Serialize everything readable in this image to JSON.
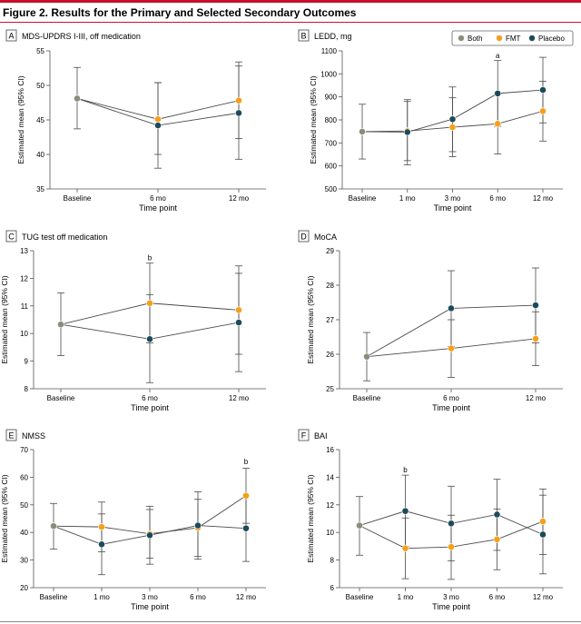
{
  "figure_title": "Figure 2. Results for the Primary and Selected Secondary Outcomes",
  "legend": [
    {
      "name": "Both",
      "color": "#8c8c7a"
    },
    {
      "name": "FMT",
      "color": "#f5a01a"
    },
    {
      "name": "Placebo",
      "color": "#1d4a5a"
    }
  ],
  "chart_data": [
    {
      "type": "line",
      "panel": "A",
      "title": "MDS-UPDRS I-III, off medication",
      "xlabel": "Time point",
      "ylabel": "Estimated mean (95% CI)",
      "categories": [
        "Baseline",
        "6 mo",
        "12 mo"
      ],
      "ylim": [
        35,
        55
      ],
      "yticks": [
        35,
        40,
        45,
        50,
        55
      ],
      "legend": false,
      "series": [
        {
          "name": "Both",
          "points": [
            {
              "x": "Baseline",
              "y": 48.1,
              "lo": 43.7,
              "hi": 52.6
            }
          ]
        },
        {
          "name": "FMT",
          "points": [
            {
              "x": "Baseline",
              "y": 48.1
            },
            {
              "x": "6 mo",
              "y": 45.1,
              "lo": 40.0,
              "hi": 50.4
            },
            {
              "x": "12 mo",
              "y": 47.8,
              "lo": 42.3,
              "hi": 53.4
            }
          ]
        },
        {
          "name": "Placebo",
          "points": [
            {
              "x": "Baseline",
              "y": 48.1
            },
            {
              "x": "6 mo",
              "y": 44.2,
              "lo": 38.0,
              "hi": 50.4
            },
            {
              "x": "12 mo",
              "y": 46.0,
              "lo": 39.3,
              "hi": 52.8
            }
          ]
        }
      ],
      "annotations": []
    },
    {
      "type": "line",
      "panel": "B",
      "title": "LEDD, mg",
      "xlabel": "Time point",
      "ylabel": "Estimated mean (95% CI)",
      "categories": [
        "Baseline",
        "1 mo",
        "3 mo",
        "6 mo",
        "12 mo"
      ],
      "ylim": [
        500,
        1100
      ],
      "yticks": [
        500,
        600,
        700,
        800,
        900,
        1000,
        1100
      ],
      "legend": true,
      "series": [
        {
          "name": "Both",
          "points": [
            {
              "x": "Baseline",
              "y": 749,
              "lo": 630,
              "hi": 868
            }
          ]
        },
        {
          "name": "FMT",
          "points": [
            {
              "x": "Baseline",
              "y": 749
            },
            {
              "x": "1 mo",
              "y": 752,
              "lo": 623,
              "hi": 880
            },
            {
              "x": "3 mo",
              "y": 768,
              "lo": 640,
              "hi": 896
            },
            {
              "x": "6 mo",
              "y": 783,
              "lo": 652,
              "hi": 913
            },
            {
              "x": "12 mo",
              "y": 838,
              "lo": 708,
              "hi": 968
            }
          ]
        },
        {
          "name": "Placebo",
          "points": [
            {
              "x": "Baseline",
              "y": 749
            },
            {
              "x": "1 mo",
              "y": 747,
              "lo": 605,
              "hi": 888
            },
            {
              "x": "3 mo",
              "y": 803,
              "lo": 662,
              "hi": 943
            },
            {
              "x": "6 mo",
              "y": 915,
              "lo": 772,
              "hi": 1058
            },
            {
              "x": "12 mo",
              "y": 930,
              "lo": 787,
              "hi": 1072
            }
          ]
        }
      ],
      "annotations": [
        {
          "x": "6 mo",
          "y": 1080,
          "text": "a"
        }
      ]
    },
    {
      "type": "line",
      "panel": "C",
      "title": "TUG test off medication",
      "xlabel": "Time point",
      "ylabel": "Estimated mean (95% CI)",
      "categories": [
        "Baseline",
        "6 mo",
        "12 mo"
      ],
      "ylim": [
        8,
        13
      ],
      "yticks": [
        8,
        9,
        10,
        11,
        12,
        13
      ],
      "legend": false,
      "series": [
        {
          "name": "Both",
          "points": [
            {
              "x": "Baseline",
              "y": 10.33,
              "lo": 9.2,
              "hi": 11.47
            }
          ]
        },
        {
          "name": "FMT",
          "points": [
            {
              "x": "Baseline",
              "y": 10.33
            },
            {
              "x": "6 mo",
              "y": 11.1,
              "lo": 9.66,
              "hi": 12.55
            },
            {
              "x": "12 mo",
              "y": 10.85,
              "lo": 9.25,
              "hi": 12.45
            }
          ]
        },
        {
          "name": "Placebo",
          "points": [
            {
              "x": "Baseline",
              "y": 10.33
            },
            {
              "x": "6 mo",
              "y": 9.8,
              "lo": 8.22,
              "hi": 11.41
            },
            {
              "x": "12 mo",
              "y": 10.4,
              "lo": 8.62,
              "hi": 12.18
            }
          ]
        }
      ],
      "annotations": [
        {
          "x": "6 mo",
          "y": 12.75,
          "text": "b"
        }
      ]
    },
    {
      "type": "line",
      "panel": "D",
      "title": "MoCA",
      "xlabel": "Time point",
      "ylabel": "Estimated mean (95% CI)",
      "categories": [
        "Baseline",
        "6 mo",
        "12 mo"
      ],
      "ylim": [
        25,
        29
      ],
      "yticks": [
        25,
        26,
        27,
        28,
        29
      ],
      "legend": false,
      "series": [
        {
          "name": "Both",
          "points": [
            {
              "x": "Baseline",
              "y": 25.93,
              "lo": 25.23,
              "hi": 26.63
            }
          ]
        },
        {
          "name": "FMT",
          "points": [
            {
              "x": "Baseline",
              "y": 25.93
            },
            {
              "x": "6 mo",
              "y": 26.17,
              "lo": 25.33,
              "hi": 27.0
            },
            {
              "x": "12 mo",
              "y": 26.45,
              "lo": 25.67,
              "hi": 27.23
            }
          ]
        },
        {
          "name": "Placebo",
          "points": [
            {
              "x": "Baseline",
              "y": 25.93
            },
            {
              "x": "6 mo",
              "y": 27.33,
              "lo": 26.22,
              "hi": 28.42
            },
            {
              "x": "12 mo",
              "y": 27.42,
              "lo": 26.33,
              "hi": 28.5
            }
          ]
        }
      ],
      "annotations": []
    },
    {
      "type": "line",
      "panel": "E",
      "title": "NMSS",
      "xlabel": "Time point",
      "ylabel": "Estimated mean (95% CI)",
      "categories": [
        "Baseline",
        "1 mo",
        "3 mo",
        "6 mo",
        "12 mo"
      ],
      "ylim": [
        20,
        70
      ],
      "yticks": [
        20,
        30,
        40,
        50,
        60,
        70
      ],
      "legend": false,
      "series": [
        {
          "name": "Both",
          "points": [
            {
              "x": "Baseline",
              "y": 42.3,
              "lo": 34.0,
              "hi": 50.5
            }
          ]
        },
        {
          "name": "FMT",
          "points": [
            {
              "x": "Baseline",
              "y": 42.3
            },
            {
              "x": "1 mo",
              "y": 42.0,
              "lo": 33.0,
              "hi": 51.0
            },
            {
              "x": "3 mo",
              "y": 39.5,
              "lo": 30.7,
              "hi": 48.3
            },
            {
              "x": "6 mo",
              "y": 41.7,
              "lo": 31.3,
              "hi": 52.0
            },
            {
              "x": "12 mo",
              "y": 53.3,
              "lo": 43.3,
              "hi": 63.3
            }
          ]
        },
        {
          "name": "Placebo",
          "points": [
            {
              "x": "Baseline",
              "y": 42.3
            },
            {
              "x": "1 mo",
              "y": 35.7,
              "lo": 24.7,
              "hi": 46.7
            },
            {
              "x": "3 mo",
              "y": 39.0,
              "lo": 28.5,
              "hi": 49.5
            },
            {
              "x": "6 mo",
              "y": 42.5,
              "lo": 30.3,
              "hi": 54.7
            },
            {
              "x": "12 mo",
              "y": 41.5,
              "lo": 29.5,
              "hi": 53.5
            }
          ]
        }
      ],
      "annotations": [
        {
          "x": "12 mo",
          "y": 65.7,
          "text": "b"
        }
      ]
    },
    {
      "type": "line",
      "panel": "F",
      "title": "BAI",
      "xlabel": "Time point",
      "ylabel": "Estimated mean (95% CI)",
      "categories": [
        "Baseline",
        "1 mo",
        "3 mo",
        "6 mo",
        "12 mo"
      ],
      "ylim": [
        6,
        16
      ],
      "yticks": [
        6,
        8,
        10,
        12,
        14,
        16
      ],
      "legend": false,
      "series": [
        {
          "name": "Both",
          "points": [
            {
              "x": "Baseline",
              "y": 10.5,
              "lo": 8.35,
              "hi": 12.6
            }
          ]
        },
        {
          "name": "FMT",
          "points": [
            {
              "x": "Baseline",
              "y": 10.5
            },
            {
              "x": "1 mo",
              "y": 8.85,
              "lo": 6.65,
              "hi": 11.05
            },
            {
              "x": "3 mo",
              "y": 8.95,
              "lo": 6.6,
              "hi": 11.25
            },
            {
              "x": "6 mo",
              "y": 9.5,
              "lo": 7.3,
              "hi": 11.7
            },
            {
              "x": "12 mo",
              "y": 10.8,
              "lo": 8.4,
              "hi": 13.15
            }
          ]
        },
        {
          "name": "Placebo",
          "points": [
            {
              "x": "Baseline",
              "y": 10.5
            },
            {
              "x": "1 mo",
              "y": 11.55,
              "lo": 9.0,
              "hi": 14.15
            },
            {
              "x": "3 mo",
              "y": 10.65,
              "lo": 7.95,
              "hi": 13.35
            },
            {
              "x": "6 mo",
              "y": 11.3,
              "lo": 8.7,
              "hi": 13.85
            },
            {
              "x": "12 mo",
              "y": 9.85,
              "lo": 7.0,
              "hi": 12.7
            }
          ]
        }
      ],
      "annotations": [
        {
          "x": "1 mo",
          "y": 14.55,
          "text": "b"
        }
      ]
    }
  ]
}
